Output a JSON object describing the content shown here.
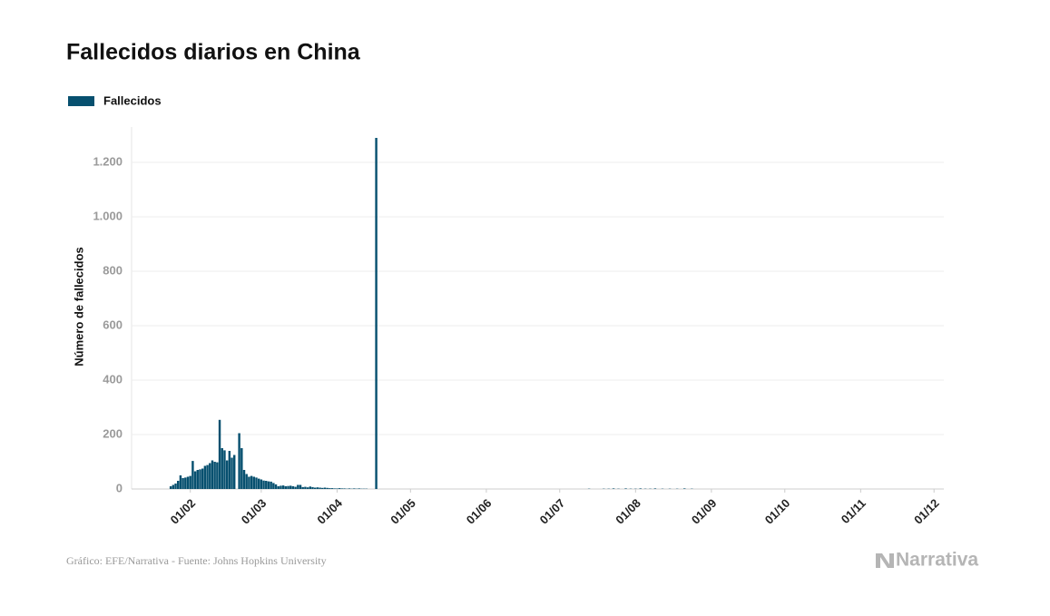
{
  "chart_data": {
    "type": "bar",
    "title": "Fallecidos diarios en China",
    "y_label": "Número de fallecidos",
    "source": "Gráfico: EFE/Narrativa - Fuente: Johns Hopkins University",
    "brand": "Narrativa",
    "grid": true,
    "xlim": [
      8,
      340
    ],
    "xticks": [
      {
        "value": 32,
        "label": "01/02"
      },
      {
        "value": 61,
        "label": "01/03"
      },
      {
        "value": 92,
        "label": "01/04"
      },
      {
        "value": 122,
        "label": "01/05"
      },
      {
        "value": 153,
        "label": "01/06"
      },
      {
        "value": 183,
        "label": "01/07"
      },
      {
        "value": 214,
        "label": "01/08"
      },
      {
        "value": 245,
        "label": "01/09"
      },
      {
        "value": 275,
        "label": "01/10"
      },
      {
        "value": 306,
        "label": "01/11"
      },
      {
        "value": 336,
        "label": "01/12"
      }
    ],
    "ylim": [
      0,
      1330
    ],
    "yticks": [
      0,
      200,
      400,
      600,
      800,
      {
        "value": 1000,
        "label": "1.000"
      },
      {
        "value": 1200,
        "label": "1.200"
      }
    ],
    "x": [
      24,
      25,
      26,
      27,
      28,
      29,
      30,
      31,
      32,
      33,
      34,
      35,
      36,
      37,
      38,
      39,
      40,
      41,
      42,
      43,
      44,
      45,
      46,
      47,
      48,
      49,
      50,
      52,
      53,
      54,
      55,
      56,
      57,
      58,
      59,
      60,
      61,
      62,
      63,
      64,
      65,
      66,
      67,
      68,
      69,
      70,
      71,
      72,
      73,
      74,
      75,
      76,
      77,
      78,
      79,
      80,
      81,
      82,
      83,
      84,
      85,
      86,
      87,
      88,
      89,
      90,
      91,
      92,
      93,
      94,
      95,
      96,
      97,
      98,
      99,
      100,
      101,
      102,
      103,
      104,
      108,
      195,
      201,
      203,
      205,
      207,
      210,
      212,
      214,
      216,
      218,
      220,
      222,
      225,
      228,
      231,
      234,
      237
    ],
    "series": [
      {
        "name": "Fallecidos",
        "color": "#07506f",
        "values": [
          10,
          15,
          20,
          30,
          50,
          40,
          42,
          45,
          48,
          103,
          65,
          70,
          72,
          75,
          85,
          88,
          95,
          105,
          100,
          98,
          254,
          150,
          142,
          105,
          140,
          115,
          125,
          205,
          150,
          70,
          55,
          45,
          48,
          45,
          42,
          38,
          35,
          31,
          30,
          28,
          27,
          22,
          17,
          10,
          12,
          13,
          10,
          11,
          12,
          10,
          8,
          15,
          15,
          7,
          8,
          6,
          9,
          7,
          5,
          6,
          5,
          4,
          5,
          4,
          3,
          3,
          2,
          2,
          3,
          2,
          2,
          1,
          2,
          1,
          2,
          1,
          2,
          1,
          1,
          1,
          1290,
          1,
          1,
          1,
          2,
          1,
          2,
          1,
          1,
          2,
          1,
          1,
          2,
          1,
          1,
          1,
          2,
          1
        ]
      }
    ]
  }
}
